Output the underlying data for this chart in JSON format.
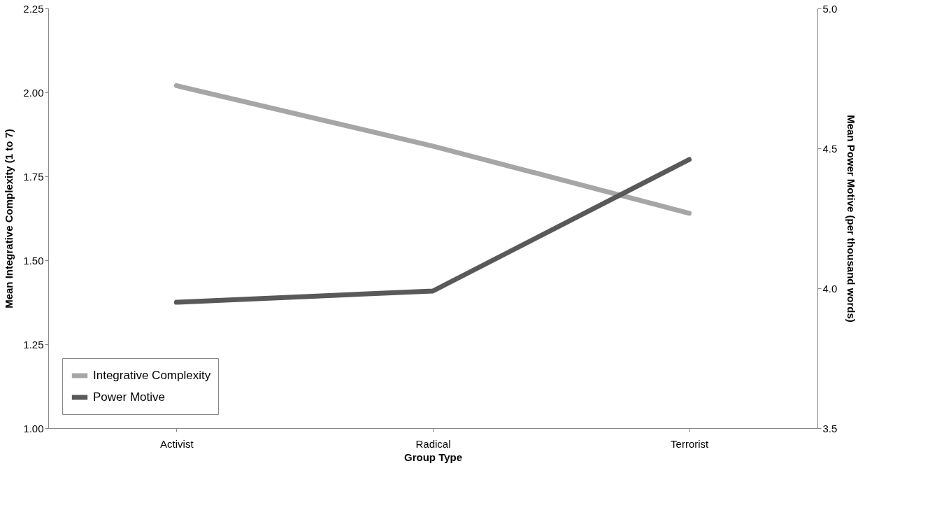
{
  "chart_data": {
    "type": "line",
    "xlabel": "Group Type",
    "ylabel": "Mean Integrative Complexity (1 to 7)",
    "y2label": "Mean Power Motive (per thousand words)",
    "categories": [
      "Activist",
      "Radical",
      "Terrorist"
    ],
    "series": [
      {
        "name": "Integrative Complexity",
        "color": "#a6a6a6",
        "values": [
          2.02,
          1.84,
          1.64
        ]
      },
      {
        "name": "Power Motive",
        "color": "#595959",
        "values": [
          3.95,
          3.99,
          4.46
        ],
        "axis": "y2"
      }
    ],
    "ylim": [
      1.0,
      2.25
    ],
    "yticks": [
      {
        "value": 1.0,
        "label": "1.00"
      },
      {
        "value": 1.25,
        "label": "1.25"
      },
      {
        "value": 1.5,
        "label": "1.50"
      },
      {
        "value": 1.75,
        "label": "1.75"
      },
      {
        "value": 2.0,
        "label": "2.00"
      },
      {
        "value": 2.25,
        "label": "2.25"
      }
    ],
    "y2lim": [
      3.5,
      5.0
    ],
    "y2ticks": [
      {
        "value": 3.5,
        "label": "3.5"
      },
      {
        "value": 4.0,
        "label": "4.0"
      },
      {
        "value": 4.5,
        "label": "4.5"
      },
      {
        "value": 5.0,
        "label": "5.0"
      }
    ],
    "grid": false,
    "legend": "bottom left",
    "marker": "none",
    "line_style": "solid"
  }
}
